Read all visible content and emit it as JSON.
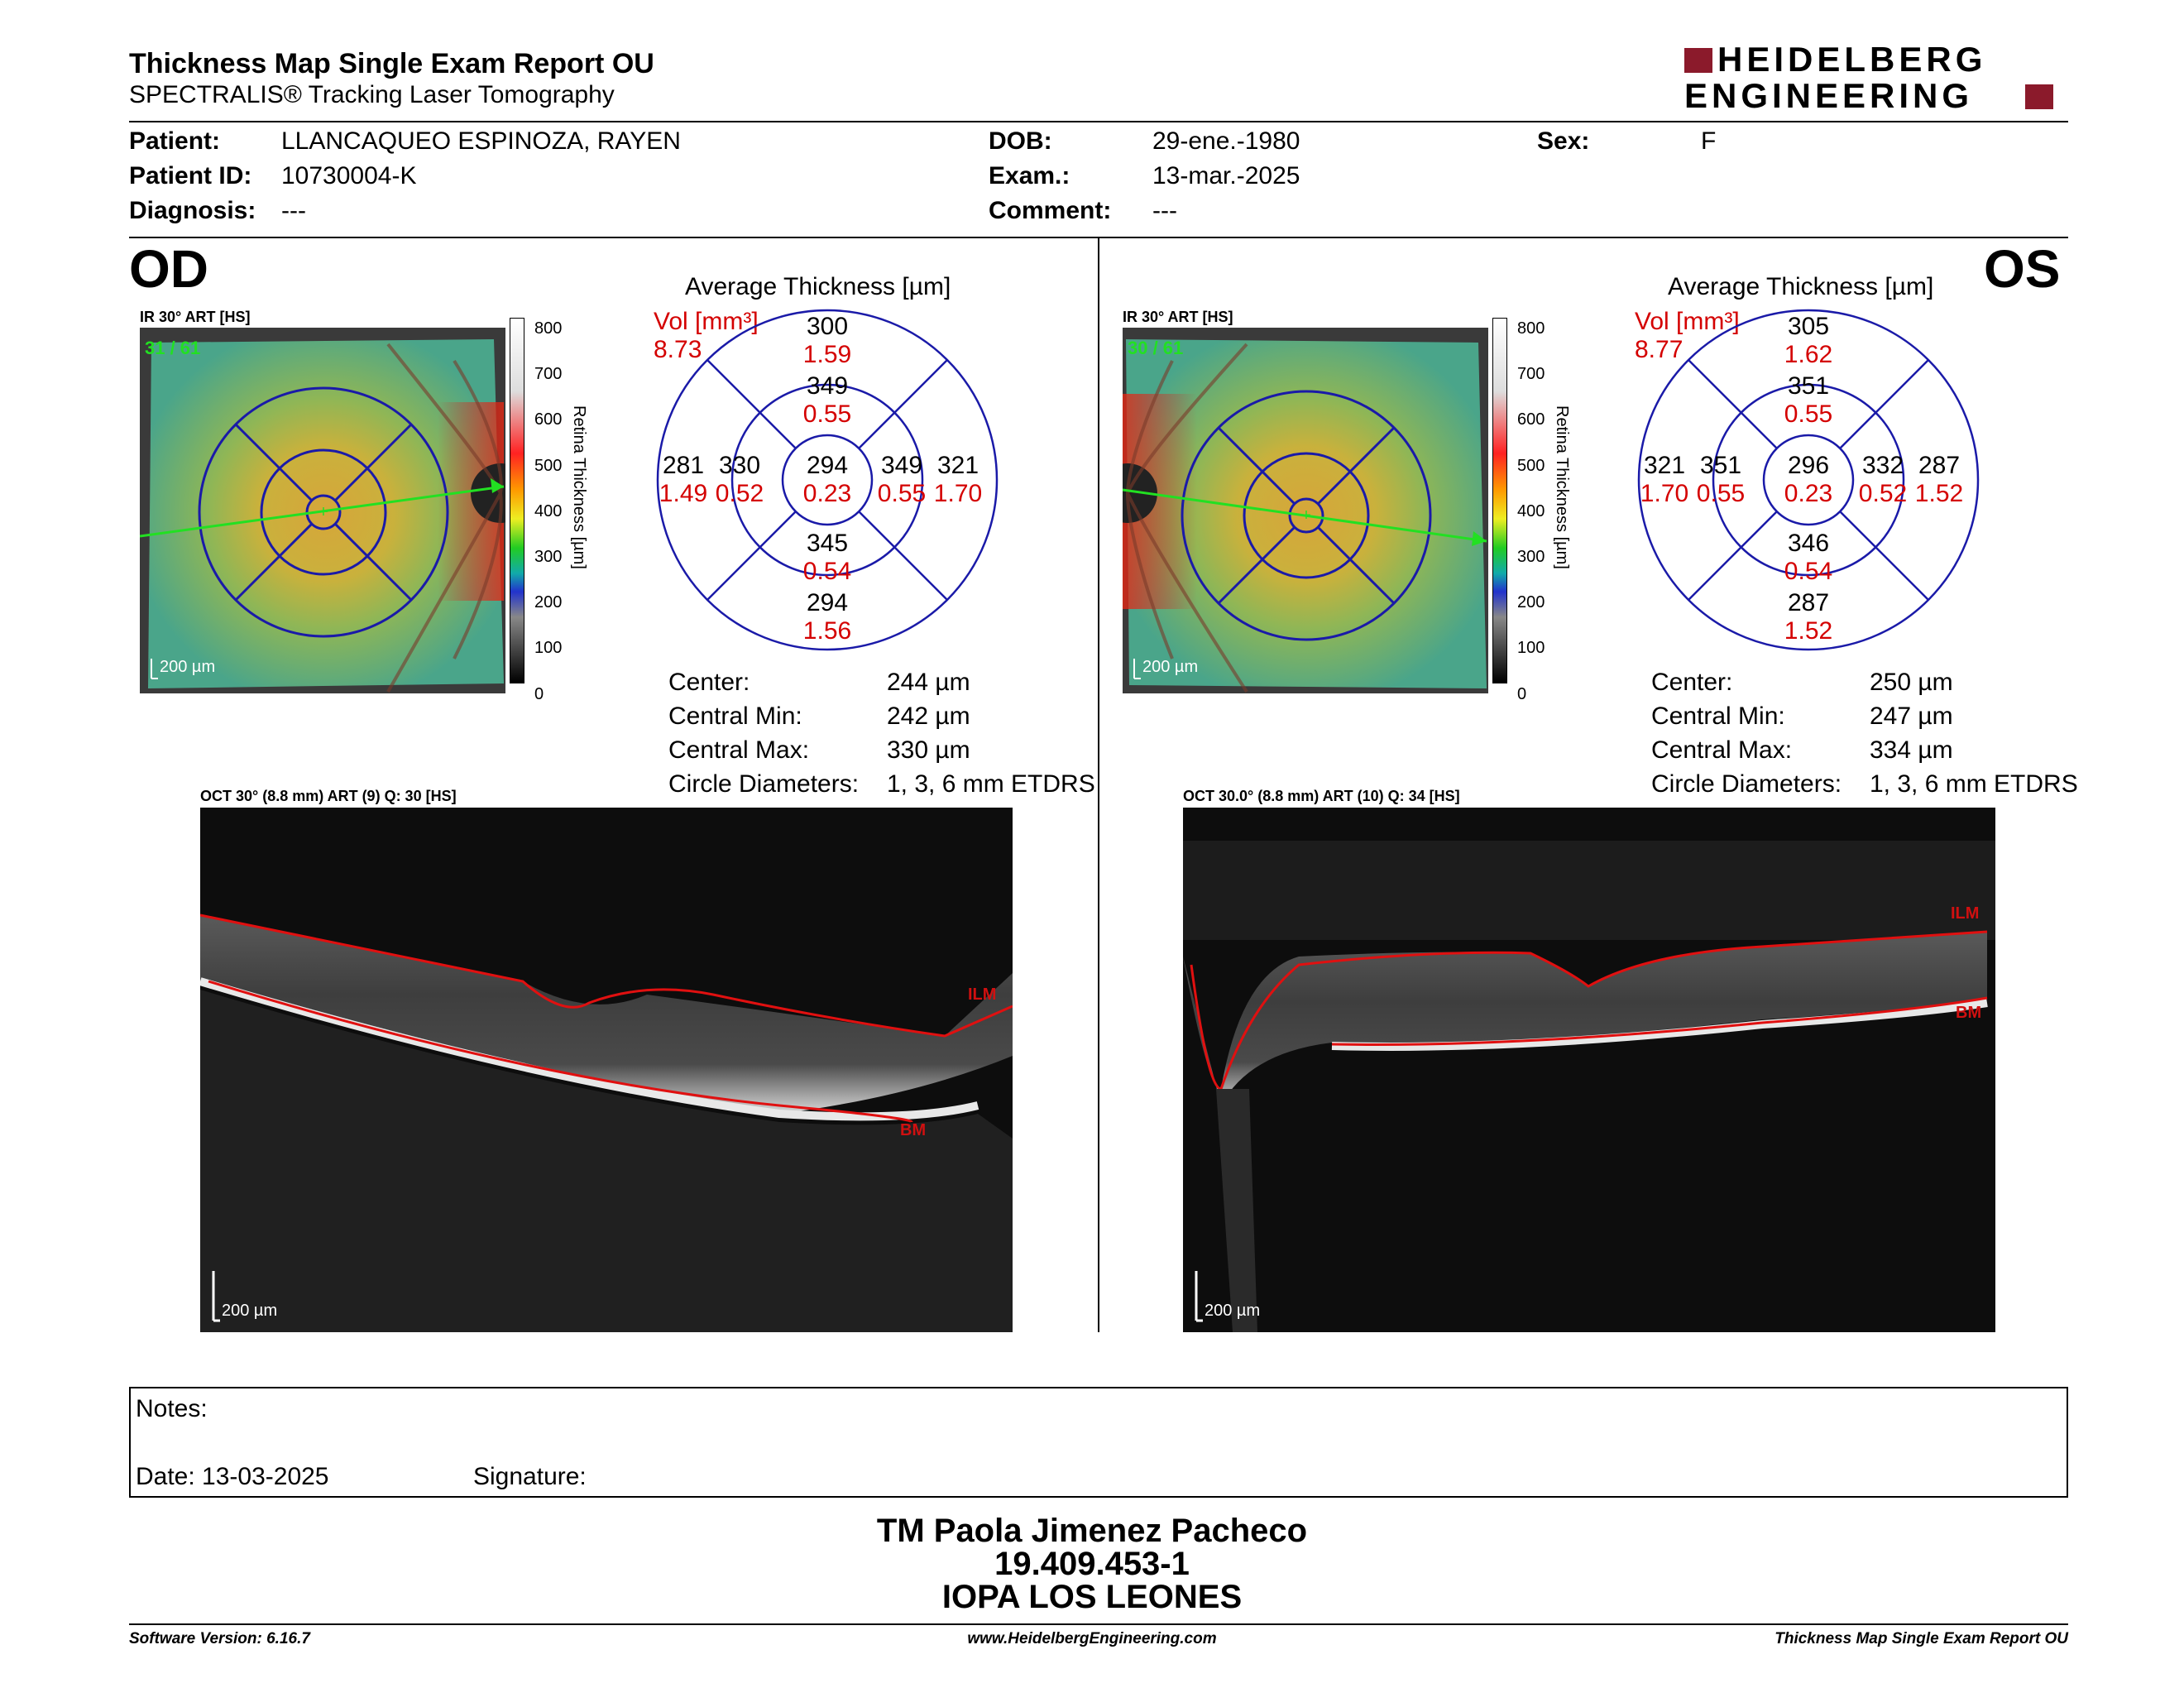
{
  "header": {
    "title": "Thickness Map Single Exam Report OU",
    "subtitle": "SPECTRALIS® Tracking Laser Tomography",
    "logo_line1": "HEIDELBERG",
    "logo_line2": "ENGINEERING"
  },
  "patient": {
    "patient_label": "Patient:",
    "patient_value": "LLANCAQUEO ESPINOZA, RAYEN",
    "id_label": "Patient ID:",
    "id_value": "10730004-K",
    "diag_label": "Diagnosis:",
    "diag_value": "---",
    "dob_label": "DOB:",
    "dob_value": "29-ene.-1980",
    "exam_label": "Exam.:",
    "exam_value": "13-mar.-2025",
    "comment_label": "Comment:",
    "comment_value": "---",
    "sex_label": "Sex:",
    "sex_value": "F"
  },
  "od": {
    "eye": "OD",
    "ir_label": "IR 30° ART [HS]",
    "fundus_counter": "31 / 61",
    "scale_text": "200 µm",
    "colorbar_ticks": [
      "800",
      "700",
      "600",
      "500",
      "400",
      "300",
      "200",
      "100",
      "0"
    ],
    "colorbar_title": "Retina Thickness [µm]",
    "avg_title": "Average Thickness [µm]",
    "vol_label": "Vol [mm³]",
    "vol_value": "8.73",
    "grid": {
      "sup_out": "300",
      "sup_out_v": "1.59",
      "sup_in": "349",
      "sup_in_v": "0.55",
      "nas_out": "281",
      "nas_out_v": "1.49",
      "nas_in": "330",
      "nas_in_v": "0.52",
      "center": "294",
      "center_v": "0.23",
      "temp_in": "349",
      "temp_in_v": "0.55",
      "temp_out": "321",
      "temp_out_v": "1.70",
      "inf_in": "345",
      "inf_in_v": "0.54",
      "inf_out": "294",
      "inf_out_v": "1.56"
    },
    "stats": {
      "center_label": "Center:",
      "center_value": "244 µm",
      "min_label": "Central Min:",
      "min_value": "242 µm",
      "max_label": "Central Max:",
      "max_value": "330 µm",
      "diam_label": "Circle Diameters:",
      "diam_value": "1, 3, 6 mm ETDRS"
    },
    "oct_label": "OCT 30° (8.8 mm) ART (9) Q: 30 [HS]",
    "ilm": "ILM",
    "bm": "BM",
    "oct_scale": "200 µm"
  },
  "os": {
    "eye": "OS",
    "ir_label": "IR 30° ART [HS]",
    "fundus_counter": "30 / 61",
    "scale_text": "200 µm",
    "colorbar_ticks": [
      "800",
      "700",
      "600",
      "500",
      "400",
      "300",
      "200",
      "100",
      "0"
    ],
    "colorbar_title": "Retina Thickness [µm]",
    "avg_title": "Average Thickness [µm]",
    "vol_label": "Vol [mm³]",
    "vol_value": "8.77",
    "grid": {
      "sup_out": "305",
      "sup_out_v": "1.62",
      "sup_in": "351",
      "sup_in_v": "0.55",
      "nas_out": "321",
      "nas_out_v": "1.70",
      "nas_in": "351",
      "nas_in_v": "0.55",
      "center": "296",
      "center_v": "0.23",
      "temp_in": "332",
      "temp_in_v": "0.52",
      "temp_out": "287",
      "temp_out_v": "1.52",
      "inf_in": "346",
      "inf_in_v": "0.54",
      "inf_out": "287",
      "inf_out_v": "1.52"
    },
    "stats": {
      "center_label": "Center:",
      "center_value": "250 µm",
      "min_label": "Central Min:",
      "min_value": "247 µm",
      "max_label": "Central Max:",
      "max_value": "334 µm",
      "diam_label": "Circle Diameters:",
      "diam_value": "1, 3, 6 mm ETDRS"
    },
    "oct_label": "OCT 30.0° (8.8 mm) ART (10) Q: 34 [HS]",
    "ilm": "ILM",
    "bm": "BM",
    "oct_scale": "200 µm"
  },
  "notes": {
    "notes_label": "Notes:",
    "date_label": "Date: 13-03-2025",
    "signature_label": "Signature:"
  },
  "signer": {
    "name": "TM Paola Jimenez Pacheco",
    "rut": "19.409.453-1",
    "institution": "IOPA LOS LEONES"
  },
  "footer": {
    "software": "Software Version: 6.16.7",
    "website": "www.HeidelbergEngineering.com",
    "report": "Thickness Map Single Exam Report OU"
  },
  "colors": {
    "logo_red": "#8b1a2b",
    "grid_blue": "#1a1aa8",
    "value_red": "#d40000",
    "segmentation_red": "#e01010"
  }
}
